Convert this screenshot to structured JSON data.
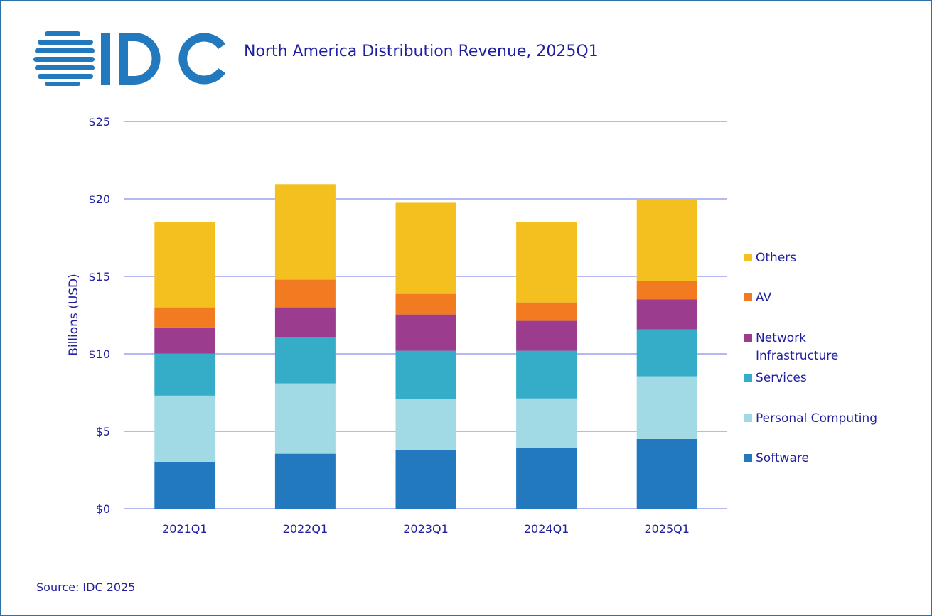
{
  "logo": {
    "text": "IDC",
    "color": "#2379be"
  },
  "title": "North America Distribution Revenue, 2025Q1",
  "source": "Source: IDC 2025",
  "chart_data": {
    "type": "bar",
    "stacked": true,
    "title": "North America Distribution Revenue, 2025Q1",
    "xlabel": "",
    "ylabel": "Billions (USD)",
    "ylim": [
      0,
      25
    ],
    "yticks": [
      0,
      5,
      10,
      15,
      20,
      25
    ],
    "ytick_labels": [
      "$0",
      "$5",
      "$10",
      "$15",
      "$20",
      "$25"
    ],
    "grid": true,
    "legend_position": "right",
    "categories": [
      "2021Q1",
      "2022Q1",
      "2023Q1",
      "2024Q1",
      "2025Q1"
    ],
    "series": [
      {
        "name": "Software",
        "color": "#2379be",
        "values": [
          3.03,
          3.55,
          3.81,
          3.95,
          4.5
        ]
      },
      {
        "name": "Personal Computing",
        "color": "#a1dae5",
        "values": [
          4.27,
          4.54,
          3.27,
          3.17,
          4.05
        ]
      },
      {
        "name": "Services",
        "color": "#36adc8",
        "values": [
          2.72,
          2.98,
          3.12,
          3.08,
          3.03
        ]
      },
      {
        "name": "Network Infrastructure",
        "color": "#9c3c8e",
        "values": [
          1.69,
          1.93,
          2.34,
          1.93,
          1.93
        ]
      },
      {
        "name": "AV",
        "color": "#f27a21",
        "values": [
          1.29,
          1.79,
          1.33,
          1.19,
          1.19
        ]
      },
      {
        "name": "Others",
        "color": "#f4c01f",
        "values": [
          5.51,
          6.16,
          5.88,
          5.19,
          5.24
        ]
      }
    ],
    "legend_labels": [
      [
        "Others"
      ],
      [
        "AV"
      ],
      [
        "Network",
        "Infrastructure"
      ],
      [
        "Services"
      ],
      [
        "Personal Computing"
      ],
      [
        "Software"
      ]
    ]
  }
}
